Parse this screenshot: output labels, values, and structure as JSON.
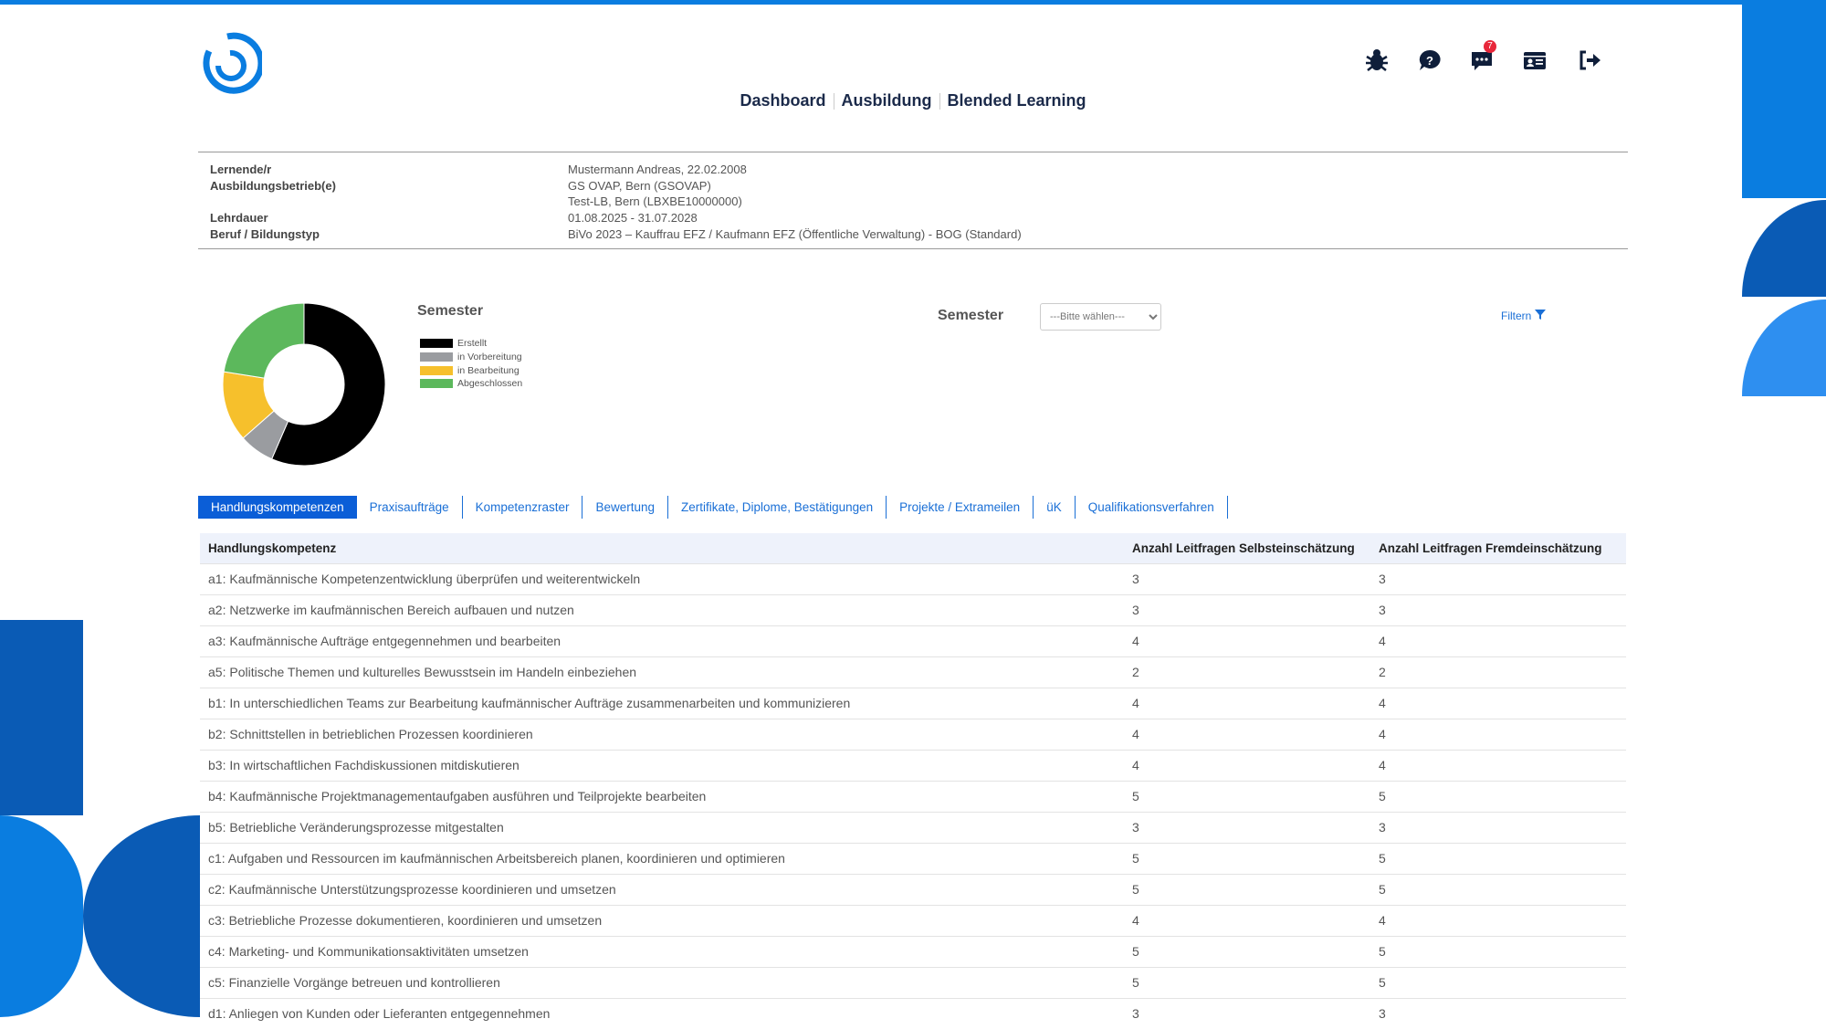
{
  "colors": {
    "brand": "#0a7de0",
    "dark_blue": "#0a5bb5",
    "tab_active": "#0b5ed7"
  },
  "nav": {
    "items": [
      "Dashboard",
      "Ausbildung",
      "Blended Learning"
    ]
  },
  "header_icons": [
    {
      "name": "bug-icon"
    },
    {
      "name": "help-icon"
    },
    {
      "name": "messages-icon",
      "badge": "7"
    },
    {
      "name": "id-card-icon"
    },
    {
      "name": "logout-icon"
    }
  ],
  "info": {
    "rows": [
      {
        "label": "Lernende/r",
        "value": "Mustermann Andreas, 22.02.2008"
      },
      {
        "label": "Ausbildungsbetrieb(e)",
        "value": "GS OVAP, Bern (GSOVAP)"
      },
      {
        "label": "",
        "value": "Test-LB, Bern (LBXBE10000000)"
      },
      {
        "label": "Lehrdauer",
        "value": "01.08.2025 - 31.07.2028"
      },
      {
        "label": "Beruf / Bildungstyp",
        "value": "BiVo 2023 – Kauffrau EFZ / Kaufmann EFZ (Öffentliche Verwaltung) - BOG (Standard)"
      }
    ]
  },
  "chart_data": {
    "type": "pie",
    "title": "Semester",
    "donut": true,
    "slices": [
      {
        "name": "Erstellt",
        "percent": 56.5,
        "color": "#000000"
      },
      {
        "name": "in Vorbereitung",
        "percent": 7,
        "color": "#9a9ca0"
      },
      {
        "name": "in Bearbeitung",
        "percent": 14,
        "color": "#f6c02c"
      },
      {
        "name": "Abgeschlossen",
        "percent": 22.5,
        "color": "#5cb85c"
      }
    ],
    "legend": "right"
  },
  "filter": {
    "label": "Semester",
    "select_value": "---Bitte wählen---",
    "filter_label": "Filtern"
  },
  "tabs": [
    "Handlungskompetenzen",
    "Praxisaufträge",
    "Kompetenzraster",
    "Bewertung",
    "Zertifikate, Diplome, Bestätigungen",
    "Projekte / Extrameilen",
    "üK",
    "Qualifikationsverfahren"
  ],
  "active_tab": "Handlungskompetenzen",
  "table": {
    "headers": [
      "Handlungskompetenz",
      "Anzahl Leitfragen Selbsteinschätzung",
      "Anzahl Leitfragen Fremdeinschätzung"
    ],
    "rows": [
      [
        "a1: Kaufmännische Kompetenzentwicklung überprüfen und weiterentwickeln",
        "3",
        "3"
      ],
      [
        "a2: Netzwerke im kaufmännischen Bereich aufbauen und nutzen",
        "3",
        "3"
      ],
      [
        "a3: Kaufmännische Aufträge entgegennehmen und bearbeiten",
        "4",
        "4"
      ],
      [
        "a5: Politische Themen und kulturelles Bewusstsein im Handeln einbeziehen",
        "2",
        "2"
      ],
      [
        "b1: In unterschiedlichen Teams zur Bearbeitung kaufmännischer Aufträge zusammenarbeiten und kommunizieren",
        "4",
        "4"
      ],
      [
        "b2: Schnittstellen in betrieblichen Prozessen koordinieren",
        "4",
        "4"
      ],
      [
        "b3: In wirtschaftlichen Fachdiskussionen mitdiskutieren",
        "4",
        "4"
      ],
      [
        "b4: Kaufmännische Projektmanagementaufgaben ausführen und Teilprojekte bearbeiten",
        "5",
        "5"
      ],
      [
        "b5: Betriebliche Veränderungsprozesse mitgestalten",
        "3",
        "3"
      ],
      [
        "c1: Aufgaben und Ressourcen im kaufmännischen Arbeitsbereich planen, koordinieren und optimieren",
        "5",
        "5"
      ],
      [
        "c2: Kaufmännische Unterstützungsprozesse koordinieren und umsetzen",
        "5",
        "5"
      ],
      [
        "c3: Betriebliche Prozesse dokumentieren, koordinieren und umsetzen",
        "4",
        "4"
      ],
      [
        "c4: Marketing- und Kommunikationsaktivitäten umsetzen",
        "5",
        "5"
      ],
      [
        "c5: Finanzielle Vorgänge betreuen und kontrollieren",
        "5",
        "5"
      ],
      [
        "d1: Anliegen von Kunden oder Lieferanten entgegennehmen",
        "3",
        "3"
      ]
    ]
  }
}
